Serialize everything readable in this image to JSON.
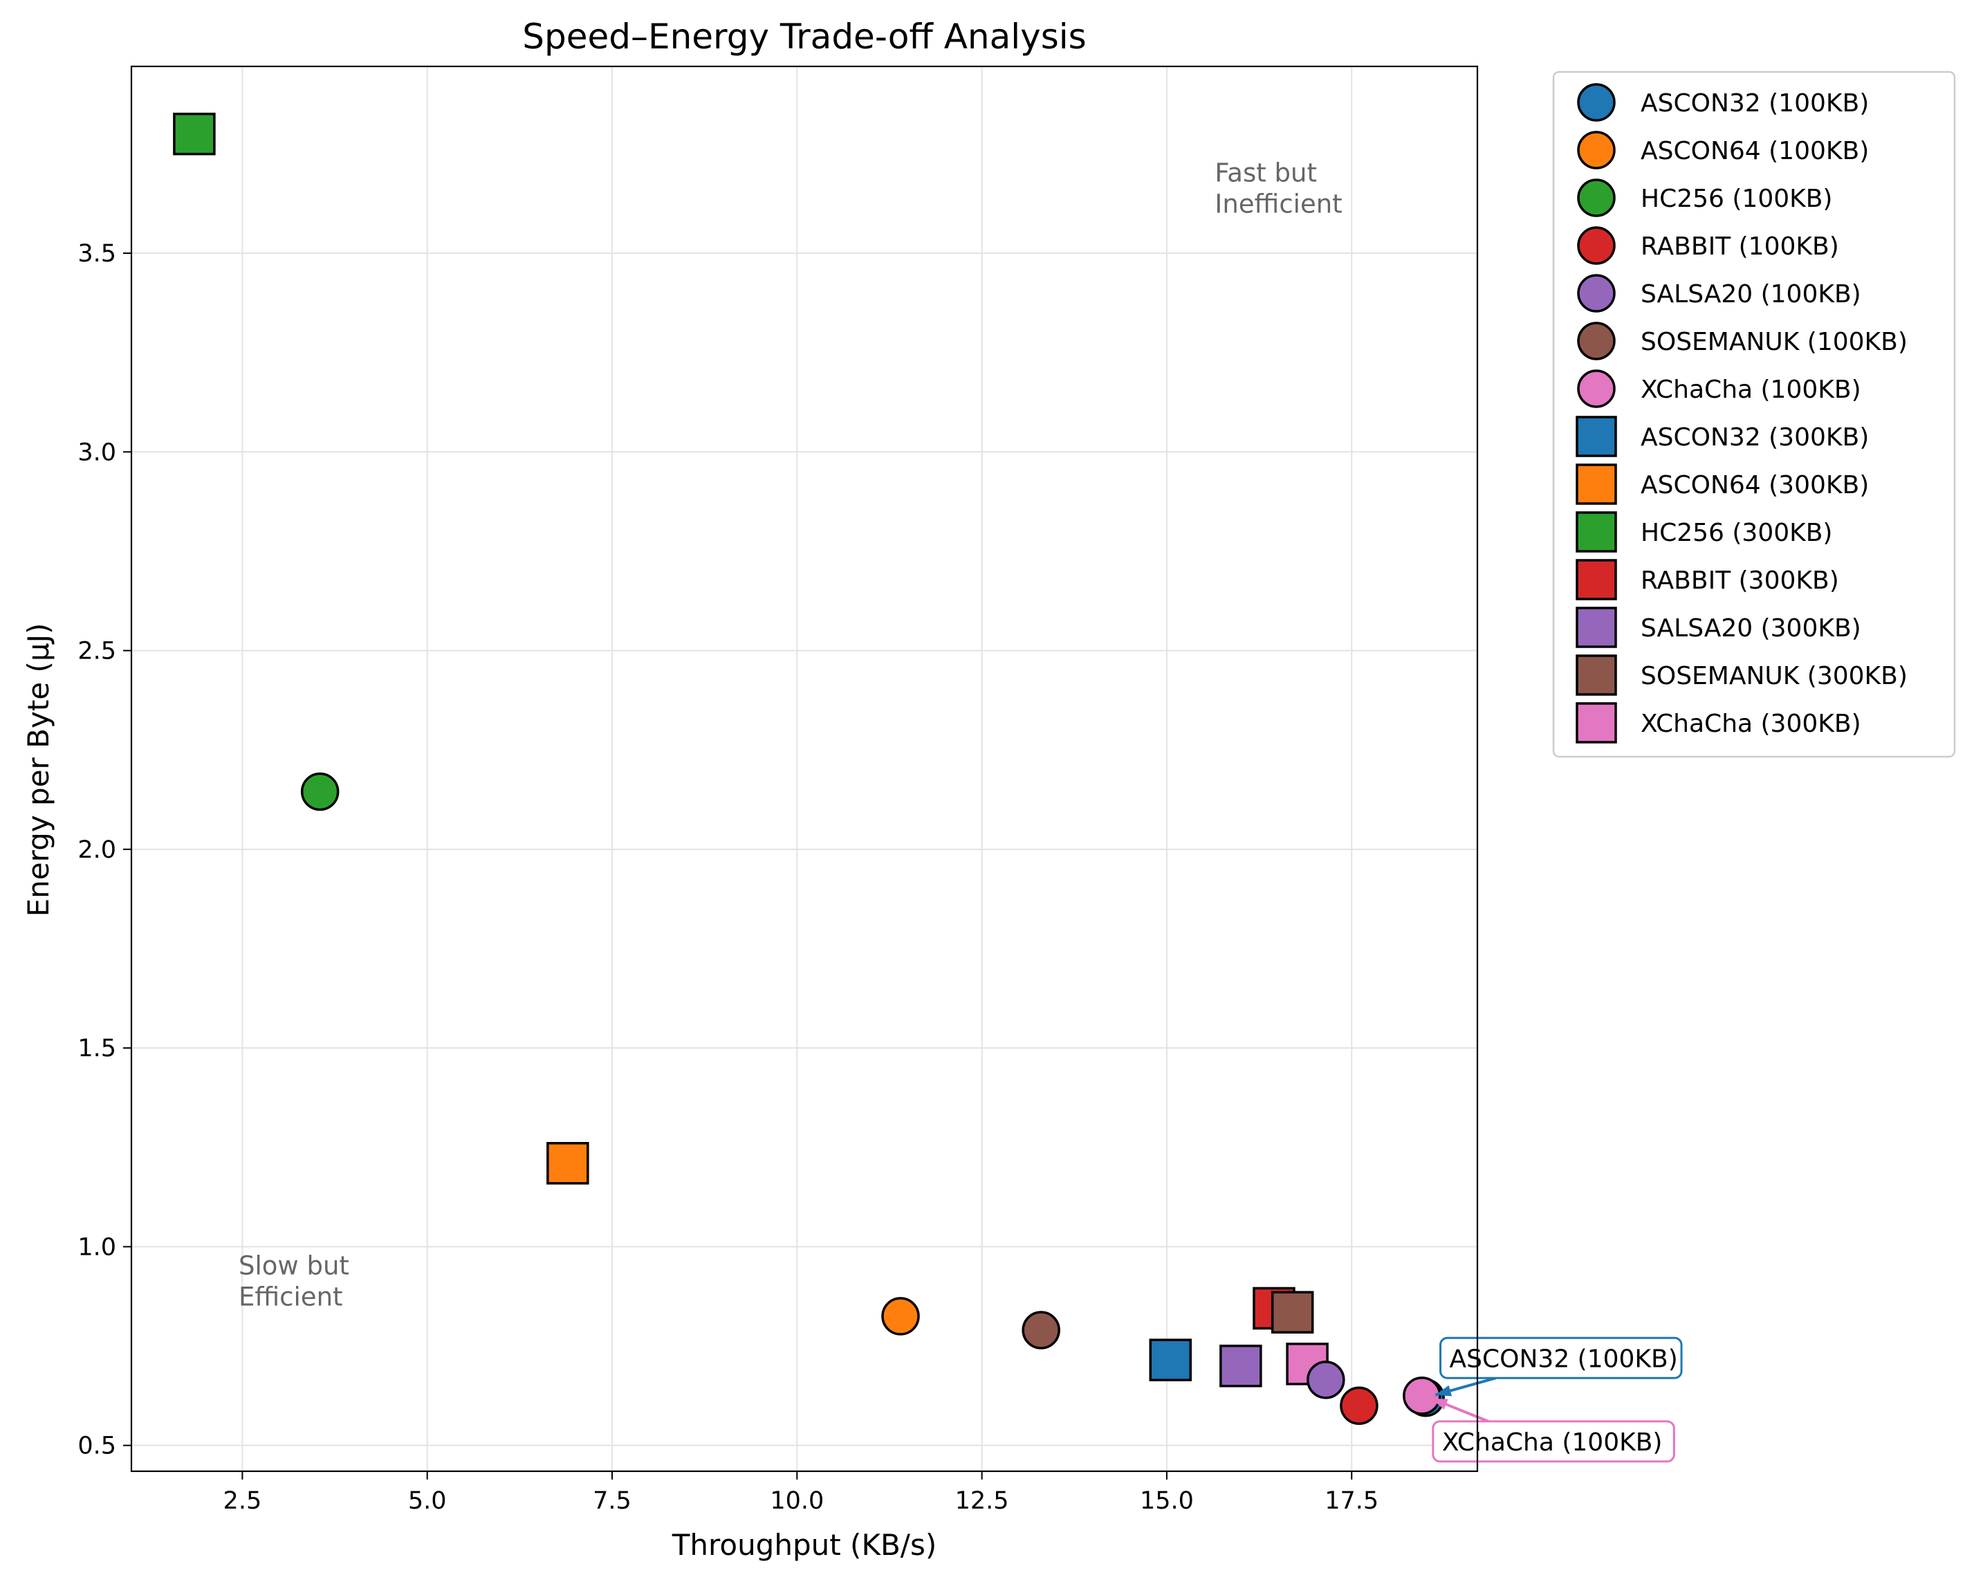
{
  "chart_data": {
    "type": "scatter",
    "title": "Speed–Energy Trade-off Analysis",
    "xlabel": "Throughput (KB/s)",
    "ylabel": "Energy per Byte (μJ)",
    "xlim": [
      1.0,
      19.2
    ],
    "ylim": [
      0.435,
      3.97
    ],
    "xticks": [
      2.5,
      5.0,
      7.5,
      10.0,
      12.5,
      15.0,
      17.5
    ],
    "xtick_labels": [
      "2.5",
      "5.0",
      "7.5",
      "10.0",
      "12.5",
      "15.0",
      "17.5"
    ],
    "yticks": [
      0.5,
      1.0,
      1.5,
      2.0,
      2.5,
      3.0,
      3.5
    ],
    "ytick_labels": [
      "0.5",
      "1.0",
      "1.5",
      "2.0",
      "2.5",
      "3.0",
      "3.5"
    ],
    "grid": true,
    "legend_position": "outside-right",
    "series": [
      {
        "name": "ASCON32 (100KB)",
        "marker": "circle",
        "color": "#1f77b4",
        "x": 18.5,
        "y": 0.62
      },
      {
        "name": "ASCON64 (100KB)",
        "marker": "circle",
        "color": "#ff7f0e",
        "x": 11.4,
        "y": 0.825
      },
      {
        "name": "HC256 (100KB)",
        "marker": "circle",
        "color": "#2ca02c",
        "x": 3.55,
        "y": 2.145
      },
      {
        "name": "RABBIT (100KB)",
        "marker": "circle",
        "color": "#d62728",
        "x": 17.6,
        "y": 0.6
      },
      {
        "name": "SALSA20 (100KB)",
        "marker": "circle",
        "color": "#9467bd",
        "x": 17.15,
        "y": 0.665
      },
      {
        "name": "SOSEMANUK (100KB)",
        "marker": "circle",
        "color": "#8c564b",
        "x": 13.3,
        "y": 0.79
      },
      {
        "name": "XChaCha (100KB)",
        "marker": "circle",
        "color": "#e377c2",
        "x": 18.45,
        "y": 0.625
      },
      {
        "name": "ASCON32 (300KB)",
        "marker": "square",
        "color": "#1f77b4",
        "x": 15.05,
        "y": 0.715
      },
      {
        "name": "ASCON64 (300KB)",
        "marker": "square",
        "color": "#ff7f0e",
        "x": 6.9,
        "y": 1.21
      },
      {
        "name": "HC256 (300KB)",
        "marker": "square",
        "color": "#2ca02c",
        "x": 1.85,
        "y": 3.8
      },
      {
        "name": "RABBIT (300KB)",
        "marker": "square",
        "color": "#d62728",
        "x": 16.45,
        "y": 0.845
      },
      {
        "name": "SALSA20 (300KB)",
        "marker": "square",
        "color": "#9467bd",
        "x": 16.0,
        "y": 0.7
      },
      {
        "name": "SOSEMANUK (300KB)",
        "marker": "square",
        "color": "#8c564b",
        "x": 16.7,
        "y": 0.835
      },
      {
        "name": "XChaCha (300KB)",
        "marker": "square",
        "color": "#e377c2",
        "x": 16.9,
        "y": 0.705
      }
    ],
    "region_annotations": [
      {
        "text_lines": [
          "Fast but",
          "Inefficient"
        ],
        "x": 15.65,
        "y": 3.68
      },
      {
        "text_lines": [
          "Slow but",
          "Efficient"
        ],
        "x": 2.45,
        "y": 0.93
      }
    ],
    "callouts": [
      {
        "text": "ASCON32 (100KB)",
        "color": "#1f77b4",
        "point_x": 18.5,
        "point_y": 0.62,
        "label_x": 18.7,
        "label_y": 0.72
      },
      {
        "text": "XChaCha (100KB)",
        "color": "#e377c2",
        "point_x": 18.45,
        "point_y": 0.625,
        "label_x": 18.6,
        "label_y": 0.51
      }
    ]
  }
}
